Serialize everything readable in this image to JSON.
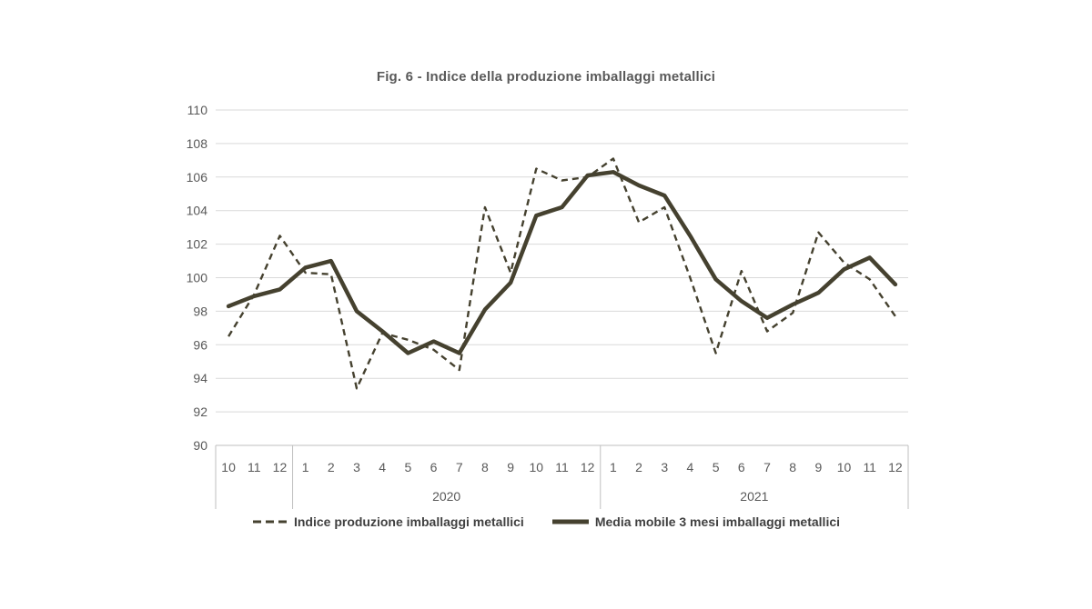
{
  "title": "Fig. 6 - Indice della produzione imballaggi metallici",
  "colors": {
    "line": "#45412F",
    "grid": "#D9D9D9",
    "axis": "#BFBFBF",
    "tick_label": "#595959",
    "title_text": "#595959",
    "legend_text": "#404040",
    "background": "#FFFFFF"
  },
  "chart_data": {
    "type": "line",
    "title": "Fig. 6 - Indice della produzione imballaggi metallici",
    "xlabel": "",
    "ylabel": "",
    "ylim": [
      90,
      110
    ],
    "ytick_step": 2,
    "ytick_labels": [
      "110",
      "108",
      "106",
      "104",
      "102",
      "100",
      "98",
      "96",
      "94",
      "92",
      "90"
    ],
    "grid": true,
    "legend_position": "bottom",
    "categories": [
      "10",
      "11",
      "12",
      "1",
      "2",
      "3",
      "4",
      "5",
      "6",
      "7",
      "8",
      "9",
      "10",
      "11",
      "12",
      "1",
      "2",
      "3",
      "4",
      "5",
      "6",
      "7",
      "8",
      "9",
      "10",
      "11",
      "12"
    ],
    "category_groups": [
      {
        "label": "",
        "span": 3
      },
      {
        "label": "2020",
        "span": 12
      },
      {
        "label": "2021",
        "span": 12
      }
    ],
    "series": [
      {
        "name": "Indice produzione imballaggi metallici",
        "style": "dashed",
        "values": [
          96.5,
          99.0,
          102.5,
          100.3,
          100.2,
          93.4,
          96.7,
          96.3,
          95.7,
          94.5,
          104.2,
          100.3,
          106.5,
          105.8,
          106.0,
          107.1,
          103.3,
          104.2,
          100.0,
          95.5,
          100.4,
          96.8,
          97.9,
          102.7,
          100.9,
          99.9,
          97.7
        ]
      },
      {
        "name": "Media mobile 3 mesi imballaggi metallici",
        "style": "solid",
        "values": [
          98.3,
          98.9,
          99.3,
          100.6,
          101.0,
          98.0,
          96.8,
          95.5,
          96.2,
          95.5,
          98.1,
          99.7,
          103.7,
          104.2,
          106.1,
          106.3,
          105.5,
          104.9,
          102.5,
          99.9,
          98.6,
          97.6,
          98.4,
          99.1,
          100.5,
          101.2,
          99.6
        ]
      }
    ]
  }
}
